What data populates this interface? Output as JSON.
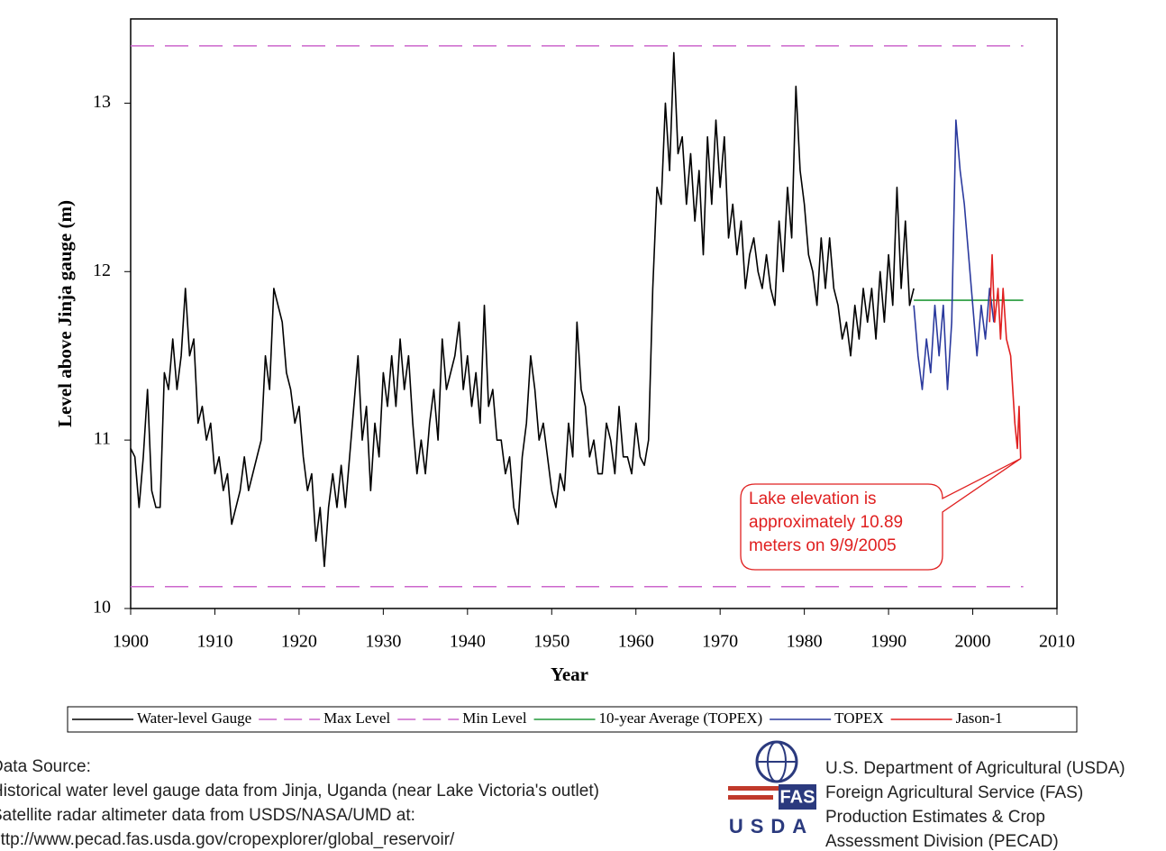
{
  "chart_data": {
    "type": "line",
    "xlabel": "Year",
    "ylabel": "Level above Jinja gauge (m)",
    "xlim": [
      1900,
      2010
    ],
    "ylim": [
      10,
      13.5
    ],
    "xticks": [
      1900,
      1910,
      1920,
      1930,
      1940,
      1950,
      1960,
      1970,
      1980,
      1990,
      2000,
      2010
    ],
    "yticks": [
      10,
      11,
      12,
      13
    ],
    "annotation": [
      "Lake elevation is",
      "approximately 10.89",
      "meters on 9/9/2005"
    ],
    "series": [
      {
        "name": "Water-level Gauge",
        "color": "#000000",
        "dash": false,
        "x": [
          1900,
          1900.5,
          1901,
          1901.5,
          1902,
          1902.5,
          1903,
          1903.5,
          1904,
          1904.5,
          1905,
          1905.5,
          1906,
          1906.5,
          1907,
          1907.5,
          1908,
          1908.5,
          1909,
          1909.5,
          1910,
          1910.5,
          1911,
          1911.5,
          1912,
          1912.5,
          1913,
          1913.5,
          1914,
          1914.5,
          1915,
          1915.5,
          1916,
          1916.5,
          1917,
          1917.5,
          1918,
          1918.5,
          1919,
          1919.5,
          1920,
          1920.5,
          1921,
          1921.5,
          1922,
          1922.5,
          1923,
          1923.5,
          1924,
          1924.5,
          1925,
          1925.5,
          1926,
          1926.5,
          1927,
          1927.5,
          1928,
          1928.5,
          1929,
          1929.5,
          1930,
          1930.5,
          1931,
          1931.5,
          1932,
          1932.5,
          1933,
          1933.5,
          1934,
          1934.5,
          1935,
          1935.5,
          1936,
          1936.5,
          1937,
          1937.5,
          1938,
          1938.5,
          1939,
          1939.5,
          1940,
          1940.5,
          1941,
          1941.5,
          1942,
          1942.5,
          1943,
          1943.5,
          1944,
          1944.5,
          1945,
          1945.5,
          1946,
          1946.5,
          1947,
          1947.5,
          1948,
          1948.5,
          1949,
          1949.5,
          1950,
          1950.5,
          1951,
          1951.5,
          1952,
          1952.5,
          1953,
          1953.5,
          1954,
          1954.5,
          1955,
          1955.5,
          1956,
          1956.5,
          1957,
          1957.5,
          1958,
          1958.5,
          1959,
          1959.5,
          1960,
          1960.5,
          1961,
          1961.5,
          1962,
          1962.5,
          1963,
          1963.5,
          1964,
          1964.5,
          1965,
          1965.5,
          1966,
          1966.5,
          1967,
          1967.5,
          1968,
          1968.5,
          1969,
          1969.5,
          1970,
          1970.5,
          1971,
          1971.5,
          1972,
          1972.5,
          1973,
          1973.5,
          1974,
          1974.5,
          1975,
          1975.5,
          1976,
          1976.5,
          1977,
          1977.5,
          1978,
          1978.5,
          1979,
          1979.5,
          1980,
          1980.5,
          1981,
          1981.5,
          1982,
          1982.5,
          1983,
          1983.5,
          1984,
          1984.5,
          1985,
          1985.5,
          1986,
          1986.5,
          1987,
          1987.5,
          1988,
          1988.5,
          1989,
          1989.5,
          1990,
          1990.5,
          1991,
          1991.5,
          1992,
          1992.5,
          1993
        ],
        "values": [
          10.95,
          10.9,
          10.6,
          10.9,
          11.3,
          10.7,
          10.6,
          10.6,
          11.4,
          11.3,
          11.6,
          11.3,
          11.5,
          11.9,
          11.5,
          11.6,
          11.1,
          11.2,
          11.0,
          11.1,
          10.8,
          10.9,
          10.7,
          10.8,
          10.5,
          10.6,
          10.7,
          10.9,
          10.7,
          10.8,
          10.9,
          11.0,
          11.5,
          11.3,
          11.9,
          11.8,
          11.7,
          11.4,
          11.3,
          11.1,
          11.2,
          10.9,
          10.7,
          10.8,
          10.4,
          10.6,
          10.25,
          10.6,
          10.8,
          10.6,
          10.85,
          10.6,
          10.9,
          11.2,
          11.5,
          11.0,
          11.2,
          10.7,
          11.1,
          10.9,
          11.4,
          11.2,
          11.5,
          11.2,
          11.6,
          11.3,
          11.5,
          11.1,
          10.8,
          11.0,
          10.8,
          11.1,
          11.3,
          11.0,
          11.6,
          11.3,
          11.4,
          11.5,
          11.7,
          11.3,
          11.5,
          11.2,
          11.4,
          11.1,
          11.8,
          11.2,
          11.3,
          11.0,
          11.0,
          10.8,
          10.9,
          10.6,
          10.5,
          10.9,
          11.1,
          11.5,
          11.3,
          11.0,
          11.1,
          10.9,
          10.7,
          10.6,
          10.8,
          10.7,
          11.1,
          10.9,
          11.7,
          11.3,
          11.2,
          10.9,
          11.0,
          10.8,
          10.8,
          11.1,
          11.0,
          10.8,
          11.2,
          10.9,
          10.9,
          10.8,
          11.1,
          10.9,
          10.85,
          11.0,
          11.9,
          12.5,
          12.4,
          13.0,
          12.6,
          13.3,
          12.7,
          12.8,
          12.4,
          12.7,
          12.3,
          12.6,
          12.1,
          12.8,
          12.4,
          12.9,
          12.5,
          12.8,
          12.2,
          12.4,
          12.1,
          12.3,
          11.9,
          12.1,
          12.2,
          12.0,
          11.9,
          12.1,
          11.9,
          11.8,
          12.3,
          12.0,
          12.5,
          12.2,
          13.1,
          12.6,
          12.4,
          12.1,
          12.0,
          11.8,
          12.2,
          11.9,
          12.2,
          11.9,
          11.8,
          11.6,
          11.7,
          11.5,
          11.8,
          11.6,
          11.9,
          11.7,
          11.9,
          11.6,
          12.0,
          11.7,
          12.1,
          11.8,
          12.5,
          11.9,
          12.3,
          11.8,
          11.9
        ]
      },
      {
        "name": "Max Level",
        "color": "#cc66cc",
        "dash": true,
        "x": [
          1900,
          2006
        ],
        "values": [
          13.34,
          13.34
        ]
      },
      {
        "name": "Min Level",
        "color": "#cc66cc",
        "dash": true,
        "x": [
          1900,
          2006
        ],
        "values": [
          10.13,
          10.13
        ]
      },
      {
        "name": "10-year Average (TOPEX)",
        "color": "#22993a",
        "dash": false,
        "x": [
          1993,
          2006
        ],
        "values": [
          11.83,
          11.83
        ]
      },
      {
        "name": "TOPEX",
        "color": "#2b3a9e",
        "dash": false,
        "x": [
          1993,
          1993.5,
          1994,
          1994.5,
          1995,
          1995.5,
          1996,
          1996.5,
          1997,
          1997.5,
          1998,
          1998.5,
          1999,
          1999.5,
          2000,
          2000.5,
          2001,
          2001.5,
          2002,
          2002.5
        ],
        "values": [
          11.8,
          11.5,
          11.3,
          11.6,
          11.4,
          11.8,
          11.5,
          11.8,
          11.3,
          11.7,
          12.9,
          12.6,
          12.4,
          12.1,
          11.8,
          11.5,
          11.8,
          11.6,
          11.9,
          11.7
        ]
      },
      {
        "name": "Jason-1",
        "color": "#e02020",
        "dash": false,
        "x": [
          2002,
          2002.3,
          2002.6,
          2003,
          2003.3,
          2003.6,
          2004,
          2004.5,
          2005,
          2005.3,
          2005.5,
          2005.69
        ],
        "values": [
          11.7,
          12.1,
          11.7,
          11.9,
          11.6,
          11.9,
          11.6,
          11.5,
          11.1,
          10.95,
          11.2,
          10.89
        ]
      }
    ]
  },
  "source": [
    "Data Source:",
    "Historical water level gauge data from Jinja, Uganda (near Lake Victoria's outlet)",
    "Satellite radar altimeter data from USDS/NASA/UMD at:",
    "http://www.pecad.fas.usda.gov/cropexplorer/global_reservoir/"
  ],
  "agency": [
    "U.S. Department of Agricultural (USDA)",
    "Foreign Agricultural Service (FAS)",
    "Production Estimates & Crop",
    "Assessment Division (PECAD)"
  ],
  "logo": {
    "band": "FAS",
    "word": "USDA"
  }
}
